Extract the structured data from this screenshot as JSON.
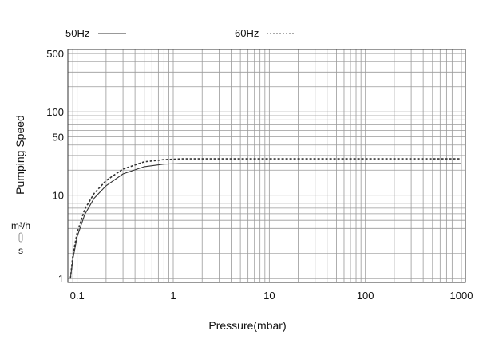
{
  "chart_data": {
    "type": "line",
    "xlabel": "Pressure(mbar)",
    "ylabel": "Pumping Speed",
    "y_unit_top": "m³/h",
    "y_unit_bottom": "s",
    "x_scale": "log",
    "y_scale": "log",
    "xlim": [
      0.08,
      1100
    ],
    "ylim": [
      0.9,
      560
    ],
    "x_ticks": [
      {
        "value": 0.1,
        "label": "0.1"
      },
      {
        "value": 1,
        "label": "1"
      },
      {
        "value": 10,
        "label": "10"
      },
      {
        "value": 100,
        "label": "100"
      },
      {
        "value": 1000,
        "label": "1000"
      }
    ],
    "y_ticks": [
      {
        "value": 1,
        "label": "1"
      },
      {
        "value": 10,
        "label": "10"
      },
      {
        "value": 50,
        "label": "50"
      },
      {
        "value": 100,
        "label": "100"
      },
      {
        "value": 500,
        "label": "500"
      }
    ],
    "grid": true,
    "legend_position": "top-left",
    "series": [
      {
        "name": "50Hz",
        "style": "solid",
        "color": "#333333",
        "x": [
          0.085,
          0.09,
          0.1,
          0.12,
          0.15,
          0.2,
          0.3,
          0.5,
          0.8,
          1.2,
          2,
          5,
          10,
          100,
          1000
        ],
        "y": [
          1,
          1.7,
          3.2,
          5.9,
          9.2,
          13,
          18,
          22,
          23.6,
          24,
          24,
          24,
          24,
          24,
          24
        ]
      },
      {
        "name": "60Hz",
        "style": "dashed",
        "color": "#333333",
        "x": [
          0.085,
          0.09,
          0.1,
          0.12,
          0.15,
          0.2,
          0.3,
          0.5,
          0.8,
          1.2,
          2,
          5,
          10,
          100,
          1000
        ],
        "y": [
          1,
          1.9,
          3.6,
          6.8,
          10.5,
          15,
          20.6,
          25.2,
          26.7,
          27.3,
          27.3,
          27.3,
          27.3,
          27.3,
          27.3
        ]
      }
    ]
  }
}
